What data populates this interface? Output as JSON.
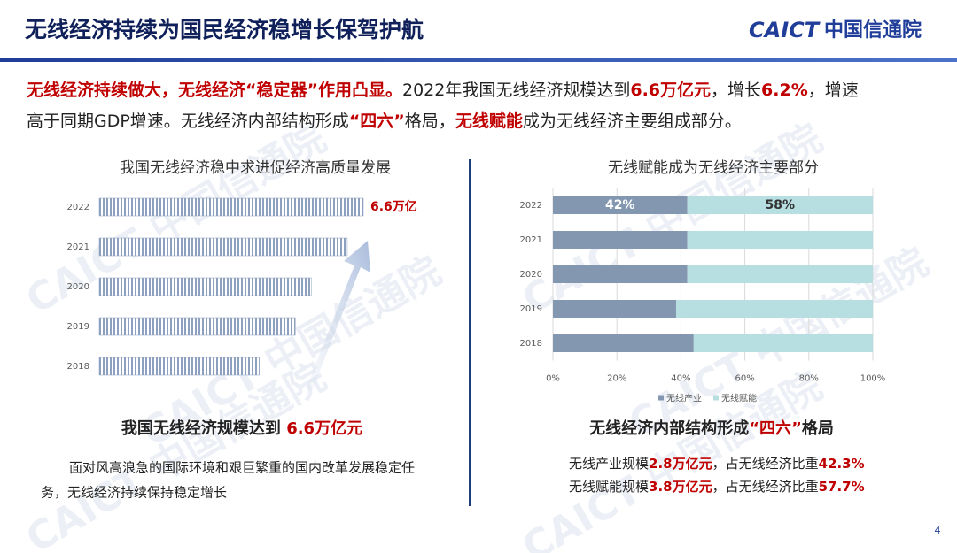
{
  "header": {
    "title": "无线经济持续为国民经济稳增长保驾护航",
    "logo_mark": "CAICT",
    "logo_name": "中国信通院"
  },
  "watermark": "CAICT 中国信通院",
  "intro": [
    [
      {
        "text": "无线经济持续做大，无线经济“稳定器”作用凸显。",
        "color": "#c00000"
      },
      {
        "text": "2022年我国无线经济规模达到"
      },
      {
        "text": "6.6万亿元",
        "color": "#c00000"
      },
      {
        "text": "，增长"
      },
      {
        "text": "6.2%",
        "color": "#c00000"
      },
      {
        "text": "，增速"
      }
    ],
    [
      {
        "text": "高于同期GDP增速。无线经济内部结构形成"
      },
      {
        "text": "“四六”",
        "color": "#c00000"
      },
      {
        "text": "格局，"
      },
      {
        "text": "无线赋能",
        "color": "#c00000"
      },
      {
        "text": "成为无线经济主要组成部分。"
      }
    ]
  ],
  "chart_data": [
    {
      "type": "bar",
      "orientation": "horizontal",
      "title": "我国无线经济稳中求进促经济高质量发展",
      "categories": [
        "2022",
        "2021",
        "2020",
        "2019",
        "2018"
      ],
      "values": [
        6.6,
        6.2,
        5.3,
        4.9,
        4.0
      ],
      "value_labels": [
        "6.6万亿",
        null,
        null,
        null,
        null
      ],
      "color": "#8da0bf"
    },
    {
      "type": "stacked_bar",
      "orientation": "horizontal",
      "title": "无线赋能成为无线经济主要部分",
      "categories": [
        "2022",
        "2021",
        "2020",
        "2019",
        "2018"
      ],
      "series": [
        {
          "name": "无线产业",
          "color": "#8497b0",
          "values": [
            42,
            42,
            42,
            38.5,
            44
          ],
          "value_labels": [
            "42%",
            null,
            null,
            null,
            null
          ]
        },
        {
          "name": "无线赋能",
          "color": "#b7dfe2",
          "values": [
            58,
            58,
            58,
            61.5,
            56
          ],
          "value_labels": [
            "58%",
            null,
            null,
            null,
            null
          ]
        }
      ],
      "xlim": [
        0,
        100
      ],
      "xticks": [
        {
          "value": 0,
          "label": "0%"
        },
        {
          "value": 20,
          "label": "20%"
        },
        {
          "value": 40,
          "label": "40%"
        },
        {
          "value": 60,
          "label": "60%"
        },
        {
          "value": 80,
          "label": "80%"
        },
        {
          "value": 100,
          "label": "100%"
        }
      ],
      "grid": true,
      "legend": "bottom"
    }
  ],
  "left_panel": {
    "caption": [
      {
        "text": "我国无线经济规模达到 "
      },
      {
        "text": "6.6万亿元",
        "color": "#c00000"
      }
    ],
    "body": [
      "面对风高浪急的国际环境和艰巨繁重的国内改革发展稳定任",
      "务，无线经济持续保持稳定增长"
    ]
  },
  "right_panel": {
    "caption": [
      {
        "text": "无线经济内部结构形成"
      },
      {
        "text": "“四六”",
        "color": "#c00000"
      },
      {
        "text": "格局"
      }
    ],
    "lines": [
      [
        {
          "text": "无线产业规模"
        },
        {
          "text": "2.8万亿元",
          "color": "#c00000"
        },
        {
          "text": "，占无线经济比重"
        },
        {
          "text": "42.3%",
          "color": "#c00000"
        }
      ],
      [
        {
          "text": "无线赋能规模"
        },
        {
          "text": "3.8万亿元",
          "color": "#c00000"
        },
        {
          "text": "，占无线经济比重"
        },
        {
          "text": "57.7%",
          "color": "#c00000"
        }
      ]
    ]
  },
  "page_number": "4"
}
